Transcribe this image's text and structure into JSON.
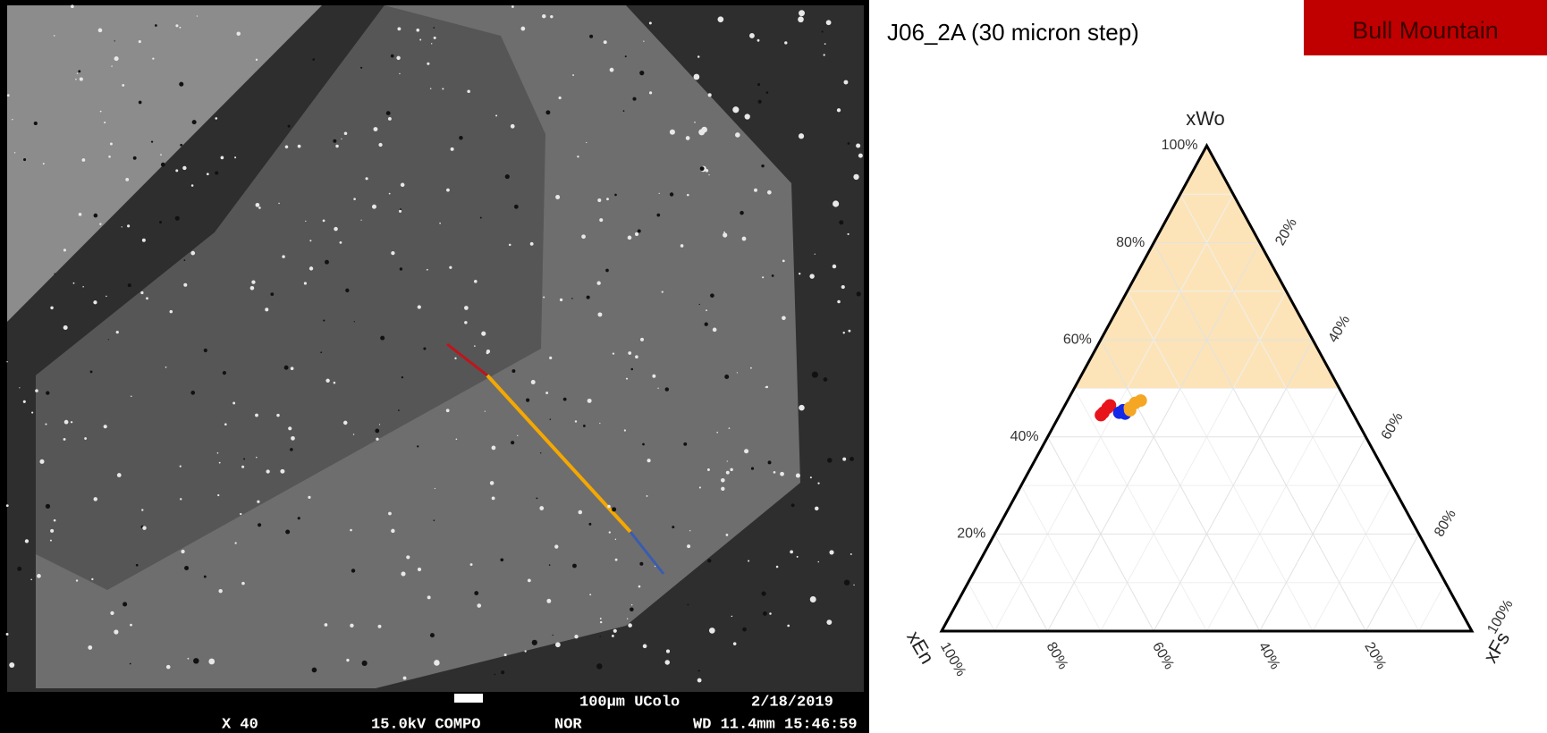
{
  "sem_image": {
    "scale_label": "100µm UColo",
    "date": "2/18/2019",
    "footer": [
      "X 40",
      "15.0kV COMPO",
      "NOR",
      "WD 11.4mm 15:46:59"
    ]
  },
  "chart_data": {
    "type": "ternary",
    "title": "J06_2A (30 micron step)",
    "badge": "Bull Mountain",
    "axes": {
      "top": "xWo",
      "left": "xEn",
      "right": "xFs"
    },
    "highlight": {
      "wo_min": 50,
      "color": "#fce4b8"
    },
    "grid": true,
    "wo_ticks": [
      {
        "value": 20,
        "label": "20%"
      },
      {
        "value": 40,
        "label": "40%"
      },
      {
        "value": 60,
        "label": "60%"
      },
      {
        "value": 80,
        "label": "80%"
      },
      {
        "value": 100,
        "label": "100%"
      }
    ],
    "fs_ticks": [
      {
        "value": 20,
        "label": "20%"
      },
      {
        "value": 40,
        "label": "40%"
      },
      {
        "value": 60,
        "label": "60%"
      },
      {
        "value": 80,
        "label": "80%"
      },
      {
        "value": 100,
        "label": "100%"
      }
    ],
    "en_ticks": [
      {
        "value": 100,
        "label": "100%"
      },
      {
        "value": 80,
        "label": "80%"
      },
      {
        "value": 60,
        "label": "60%"
      },
      {
        "value": 40,
        "label": "40%"
      },
      {
        "value": 20,
        "label": "20%"
      }
    ],
    "series": [
      {
        "color": "#e8141c",
        "wo": [
          45,
          46,
          44.5,
          46.5
        ],
        "en": [
          47,
          45.7,
          47.7,
          45
        ],
        "fs": [
          8,
          8.3,
          7.8,
          8.5
        ]
      },
      {
        "color": "#1428e8",
        "wo": [
          45,
          45.5,
          44.8
        ],
        "en": [
          44,
          43,
          43
        ],
        "fs": [
          11,
          11.5,
          12.2
        ]
      },
      {
        "color": "#f5a623",
        "wo": [
          46,
          47,
          47.5,
          45.5
        ],
        "en": [
          41.5,
          40,
          38.7,
          41.7
        ],
        "fs": [
          12.5,
          13,
          13.8,
          12.8
        ]
      }
    ]
  }
}
